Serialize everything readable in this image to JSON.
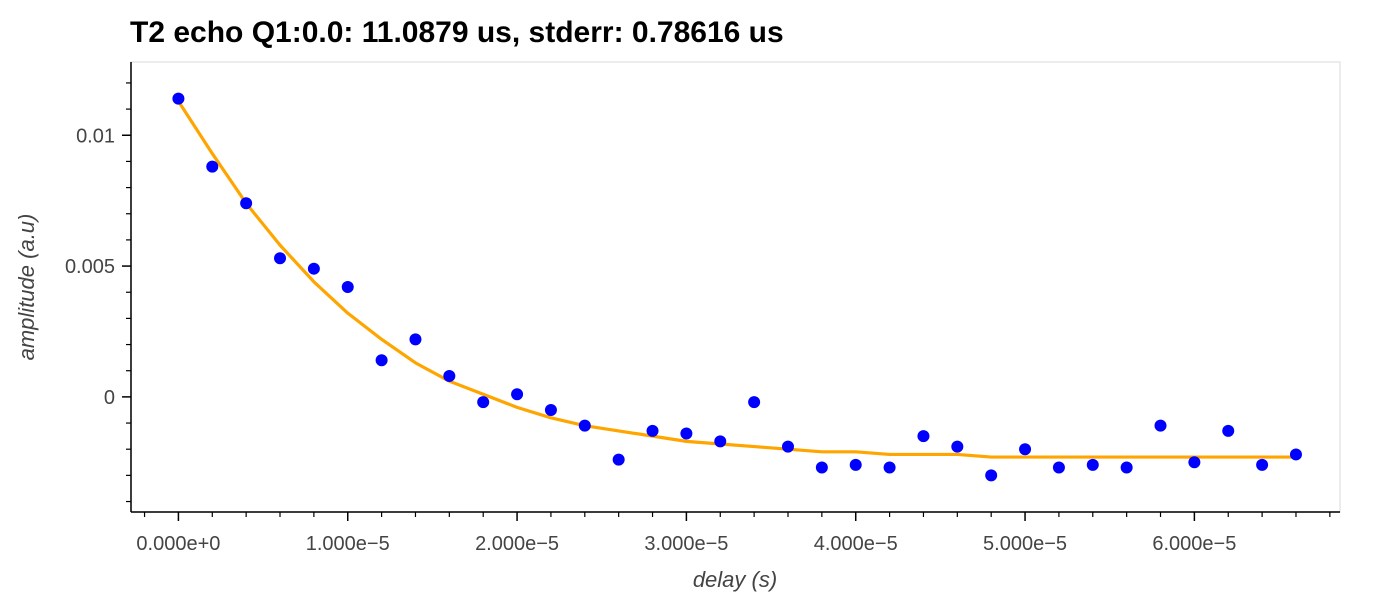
{
  "chart_data": {
    "type": "scatter",
    "title": "T2 echo Q1:0.0: 11.0879 us, stderr: 0.78616 us",
    "xlabel": "delay (s)",
    "ylabel": "amplitude (a.u)",
    "xlim": [
      -2.8e-06,
      6.86e-05
    ],
    "ylim": [
      -0.0044,
      0.0128
    ],
    "x_ticks": [
      0,
      1e-05,
      2e-05,
      3e-05,
      4e-05,
      5e-05,
      6e-05
    ],
    "x_tick_labels": [
      "0.000e+0",
      "1.000e−5",
      "2.000e−5",
      "3.000e−5",
      "4.000e−5",
      "5.000e−5",
      "6.000e−5"
    ],
    "y_ticks": [
      0,
      0.005,
      0.01
    ],
    "y_tick_labels": [
      "0",
      "0.005",
      "0.01"
    ],
    "grid": false,
    "legend": "none",
    "colors": {
      "points": "#0000ff",
      "fit": "#ffa500",
      "axis": "#000000",
      "frame": "#e5e5e5"
    },
    "series": [
      {
        "type": "scatter",
        "x": [
          0,
          2e-06,
          4e-06,
          6e-06,
          8e-06,
          1e-05,
          1.2e-05,
          1.4e-05,
          1.6e-05,
          1.8e-05,
          2e-05,
          2.2e-05,
          2.4e-05,
          2.6e-05,
          2.8e-05,
          3e-05,
          3.2e-05,
          3.4e-05,
          3.6e-05,
          3.8e-05,
          4e-05,
          4.2e-05,
          4.4e-05,
          4.6e-05,
          4.8e-05,
          5e-05,
          5.2e-05,
          5.4e-05,
          5.6e-05,
          5.8e-05,
          6e-05,
          6.2e-05,
          6.4e-05,
          6.6e-05
        ],
        "y": [
          0.0114,
          0.0088,
          0.0074,
          0.0053,
          0.0049,
          0.0042,
          0.0014,
          0.0022,
          0.0008,
          -0.0002,
          0.0001,
          -0.0005,
          -0.0011,
          -0.0024,
          -0.0013,
          -0.0014,
          -0.0017,
          -0.0002,
          -0.0019,
          -0.0027,
          -0.0026,
          -0.0027,
          -0.0015,
          -0.0019,
          -0.003,
          -0.002,
          -0.0027,
          -0.0026,
          -0.0027,
          -0.0011,
          -0.0025,
          -0.0013,
          -0.0026,
          -0.0022
        ]
      },
      {
        "type": "line",
        "x": [
          0,
          2e-06,
          4e-06,
          6e-06,
          8e-06,
          1e-05,
          1.2e-05,
          1.4e-05,
          1.6e-05,
          1.8e-05,
          2e-05,
          2.2e-05,
          2.4e-05,
          2.6e-05,
          2.8e-05,
          3e-05,
          3.2e-05,
          3.4e-05,
          3.6e-05,
          3.8e-05,
          4e-05,
          4.2e-05,
          4.4e-05,
          4.6e-05,
          4.8e-05,
          5e-05,
          5.2e-05,
          5.4e-05,
          5.6e-05,
          5.8e-05,
          6e-05,
          6.2e-05,
          6.4e-05,
          6.6e-05
        ],
        "y": [
          0.0113,
          0.0093,
          0.0074,
          0.0058,
          0.0044,
          0.0032,
          0.0022,
          0.0013,
          0.0006,
          0.0001,
          -0.0004,
          -0.0008,
          -0.0011,
          -0.0013,
          -0.0015,
          -0.0017,
          -0.0018,
          -0.0019,
          -0.002,
          -0.0021,
          -0.0021,
          -0.0022,
          -0.0022,
          -0.0022,
          -0.0023,
          -0.0023,
          -0.0023,
          -0.0023,
          -0.0023,
          -0.0023,
          -0.0023,
          -0.0023,
          -0.0023,
          -0.0023
        ]
      }
    ]
  }
}
